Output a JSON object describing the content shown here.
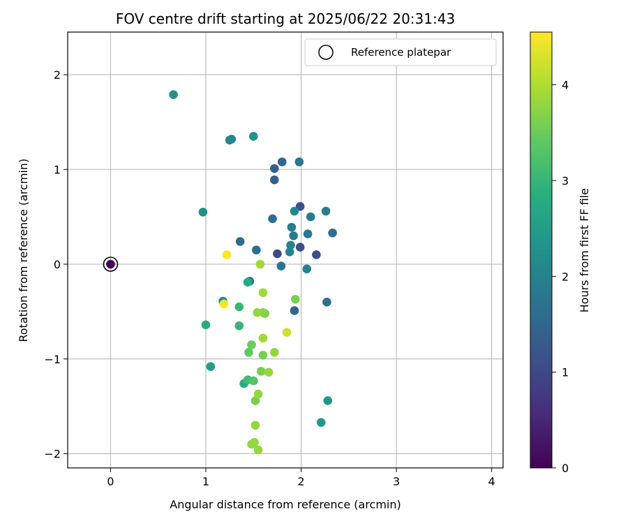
{
  "chart_data": {
    "type": "scatter",
    "title": "FOV centre drift starting at 2025/06/22 20:31:43",
    "xlabel": "Angular distance from reference (arcmin)",
    "ylabel": "Rotation from reference (arcmin)",
    "xlim": [
      -0.45,
      4.12
    ],
    "ylim": [
      -2.15,
      2.45
    ],
    "xticks": [
      0,
      1,
      2,
      3,
      4
    ],
    "yticks": [
      -2,
      -1,
      0,
      1,
      2
    ],
    "xtick_labels": [
      "0",
      "1",
      "2",
      "3",
      "4"
    ],
    "ytick_labels": [
      "−2",
      "−1",
      "0",
      "1",
      "2"
    ],
    "grid": true,
    "legend": {
      "position": "top-right",
      "label": "Reference platepar"
    },
    "reference_point": {
      "x": 0.0,
      "y": 0.0
    },
    "colorbar": {
      "label": "Hours from first FF file",
      "colormap": "viridis",
      "range": [
        0,
        4.55
      ],
      "ticks": [
        0,
        1,
        2,
        3,
        4
      ],
      "tick_labels": [
        "0",
        "1",
        "2",
        "3",
        "4"
      ]
    },
    "points": [
      {
        "x": 0.0,
        "y": 0.0,
        "c": 0.0
      },
      {
        "x": 1.75,
        "y": 0.11,
        "c": 1.0
      },
      {
        "x": 1.99,
        "y": 0.18,
        "c": 1.1
      },
      {
        "x": 2.16,
        "y": 0.1,
        "c": 1.1
      },
      {
        "x": 1.99,
        "y": 0.61,
        "c": 1.1
      },
      {
        "x": 1.72,
        "y": 0.89,
        "c": 1.4
      },
      {
        "x": 1.72,
        "y": 1.01,
        "c": 1.4
      },
      {
        "x": 1.8,
        "y": 1.08,
        "c": 1.5
      },
      {
        "x": 1.93,
        "y": -0.49,
        "c": 1.5
      },
      {
        "x": 1.36,
        "y": 0.24,
        "c": 1.6
      },
      {
        "x": 1.53,
        "y": 0.15,
        "c": 1.6
      },
      {
        "x": 2.33,
        "y": 0.33,
        "c": 1.6
      },
      {
        "x": 1.7,
        "y": 0.48,
        "c": 1.6
      },
      {
        "x": 1.46,
        "y": -0.18,
        "c": 1.6
      },
      {
        "x": 2.27,
        "y": -0.4,
        "c": 1.7
      },
      {
        "x": 1.98,
        "y": 1.08,
        "c": 1.8
      },
      {
        "x": 2.07,
        "y": 0.32,
        "c": 1.8
      },
      {
        "x": 1.79,
        "y": -0.02,
        "c": 1.8
      },
      {
        "x": 2.26,
        "y": 0.56,
        "c": 1.9
      },
      {
        "x": 2.1,
        "y": 0.5,
        "c": 1.9
      },
      {
        "x": 1.9,
        "y": 0.39,
        "c": 1.9
      },
      {
        "x": 1.92,
        "y": 0.3,
        "c": 1.9
      },
      {
        "x": 1.89,
        "y": 0.2,
        "c": 2.0
      },
      {
        "x": 1.88,
        "y": 0.13,
        "c": 2.0
      },
      {
        "x": 2.06,
        "y": -0.05,
        "c": 2.0
      },
      {
        "x": 1.27,
        "y": 1.32,
        "c": 2.1
      },
      {
        "x": 1.25,
        "y": 1.31,
        "c": 2.1
      },
      {
        "x": 1.93,
        "y": 0.56,
        "c": 2.1
      },
      {
        "x": 1.18,
        "y": -0.39,
        "c": 2.2
      },
      {
        "x": 0.66,
        "y": 1.79,
        "c": 2.3
      },
      {
        "x": 1.5,
        "y": 1.35,
        "c": 2.3
      },
      {
        "x": 0.97,
        "y": 0.55,
        "c": 2.3
      },
      {
        "x": 2.28,
        "y": -1.44,
        "c": 2.4
      },
      {
        "x": 2.21,
        "y": -1.67,
        "c": 2.4
      },
      {
        "x": 1.05,
        "y": -1.08,
        "c": 2.5
      },
      {
        "x": 1.44,
        "y": -0.19,
        "c": 2.8
      },
      {
        "x": 1.0,
        "y": -0.64,
        "c": 2.8
      },
      {
        "x": 1.4,
        "y": -1.26,
        "c": 2.8
      },
      {
        "x": 1.35,
        "y": -0.45,
        "c": 3.0
      },
      {
        "x": 1.35,
        "y": -0.65,
        "c": 3.0
      },
      {
        "x": 1.44,
        "y": -1.22,
        "c": 3.1
      },
      {
        "x": 1.5,
        "y": -1.23,
        "c": 3.3
      },
      {
        "x": 1.45,
        "y": -0.93,
        "c": 3.4
      },
      {
        "x": 1.48,
        "y": -0.85,
        "c": 3.5
      },
      {
        "x": 1.58,
        "y": -1.13,
        "c": 3.6
      },
      {
        "x": 1.52,
        "y": -1.44,
        "c": 3.6
      },
      {
        "x": 1.6,
        "y": -0.96,
        "c": 3.6
      },
      {
        "x": 1.94,
        "y": -0.37,
        "c": 3.6
      },
      {
        "x": 1.62,
        "y": -0.52,
        "c": 3.6
      },
      {
        "x": 1.6,
        "y": -0.51,
        "c": 3.7
      },
      {
        "x": 1.55,
        "y": -1.96,
        "c": 3.8
      },
      {
        "x": 1.51,
        "y": -1.88,
        "c": 3.8
      },
      {
        "x": 1.48,
        "y": -1.9,
        "c": 3.8
      },
      {
        "x": 1.55,
        "y": -1.37,
        "c": 3.8
      },
      {
        "x": 1.52,
        "y": -1.7,
        "c": 3.8
      },
      {
        "x": 1.72,
        "y": -0.93,
        "c": 3.8
      },
      {
        "x": 1.54,
        "y": -0.51,
        "c": 3.8
      },
      {
        "x": 1.66,
        "y": -1.14,
        "c": 3.8
      },
      {
        "x": 1.6,
        "y": -0.78,
        "c": 3.9
      },
      {
        "x": 1.6,
        "y": -0.3,
        "c": 3.9
      },
      {
        "x": 1.57,
        "y": 0.0,
        "c": 3.9
      },
      {
        "x": 1.85,
        "y": -0.72,
        "c": 4.2
      },
      {
        "x": 1.19,
        "y": -0.42,
        "c": 4.5
      },
      {
        "x": 1.22,
        "y": 0.1,
        "c": 4.55
      }
    ]
  }
}
